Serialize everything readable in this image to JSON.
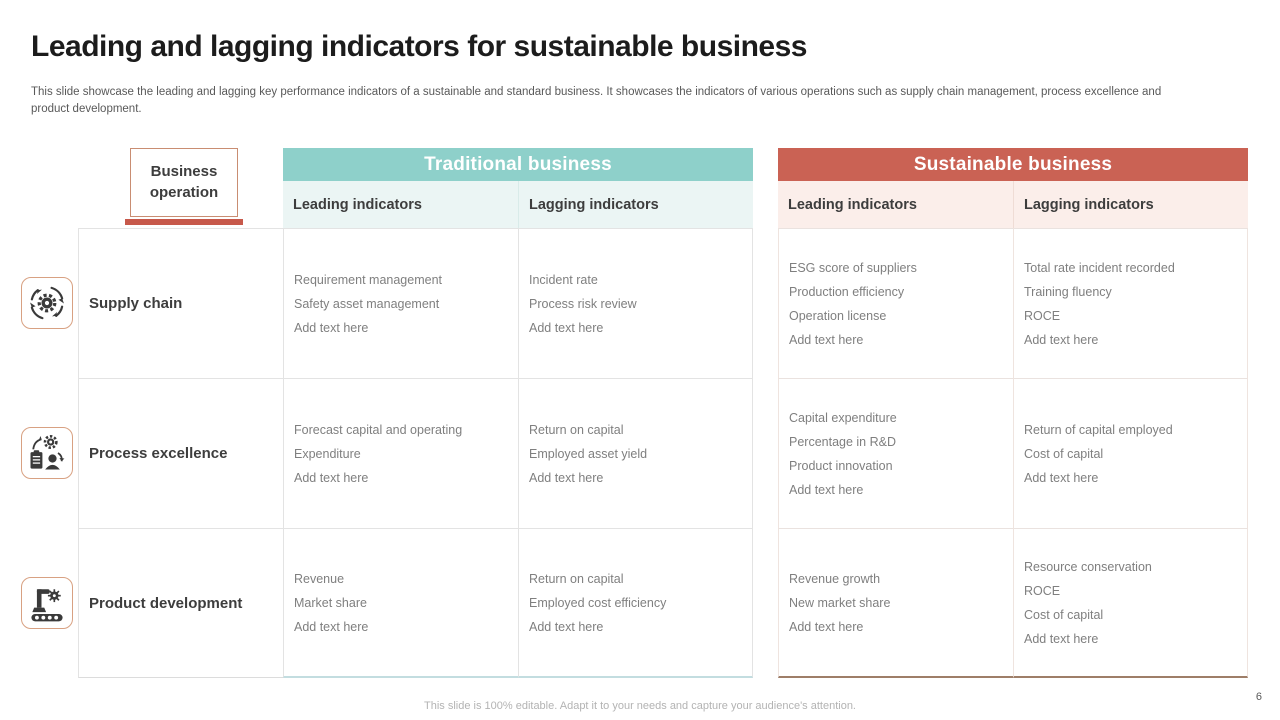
{
  "slide": {
    "title": "Leading and lagging indicators for sustainable business",
    "description": "This slide showcase the leading and lagging key performance indicators of a sustainable and standard business. It showcases the indicators of various operations such as supply chain management, process excellence and product development.",
    "footer": "This slide is 100% editable. Adapt it to your needs and capture your audience's attention.",
    "page_number": "6"
  },
  "colors": {
    "teal_header": "#8ed0ca",
    "teal_subheader_bg": "#ebf5f4",
    "coral_header": "#ca6254",
    "coral_subheader_bg": "#fbeeea",
    "accent_underline": "#c7594b",
    "icon_border": "#d8a182",
    "grid_line": "#e3e3e3",
    "body_text": "#7f7f7f",
    "heading_text": "#3d3d3d"
  },
  "icons": {
    "supply_chain": "cycle-gear-icon",
    "process_excellence": "gear-clipboard-person-icon",
    "product_development": "robotic-arm-conveyor-icon"
  },
  "table": {
    "row_header_label": "Business operation",
    "groups": [
      {
        "label": "Traditional business",
        "columns": [
          "Leading indicators",
          "Lagging indicators"
        ]
      },
      {
        "label": "Sustainable business",
        "columns": [
          "Leading indicators",
          "Lagging indicators"
        ]
      }
    ],
    "rows": [
      {
        "label": "Supply chain",
        "traditional_leading": [
          "Requirement management",
          "Safety asset management",
          "Add text here"
        ],
        "traditional_lagging": [
          "Incident rate",
          "Process risk review",
          "Add text here"
        ],
        "sustainable_leading": [
          "ESG score of suppliers",
          "Production efficiency",
          "Operation license",
          "Add text here"
        ],
        "sustainable_lagging": [
          "Total rate incident recorded",
          "Training fluency",
          "ROCE",
          "Add text here"
        ]
      },
      {
        "label": "Process excellence",
        "traditional_leading": [
          "Forecast capital and operating",
          "Expenditure",
          "Add text here"
        ],
        "traditional_lagging": [
          "Return on capital",
          "Employed asset yield",
          "Add text here"
        ],
        "sustainable_leading": [
          "Capital expenditure",
          "Percentage in R&D",
          "Product innovation",
          "Add text here"
        ],
        "sustainable_lagging": [
          "Return of capital employed",
          "Cost of capital",
          "Add text here"
        ]
      },
      {
        "label": "Product development",
        "traditional_leading": [
          "Revenue",
          "Market share",
          "Add text here"
        ],
        "traditional_lagging": [
          "Return on capital",
          "Employed cost efficiency",
          "Add text here"
        ],
        "sustainable_leading": [
          "Revenue growth",
          "New market share",
          "Add text here"
        ],
        "sustainable_lagging": [
          "Resource conservation",
          "ROCE",
          "Cost of capital",
          "Add text here"
        ]
      }
    ]
  }
}
